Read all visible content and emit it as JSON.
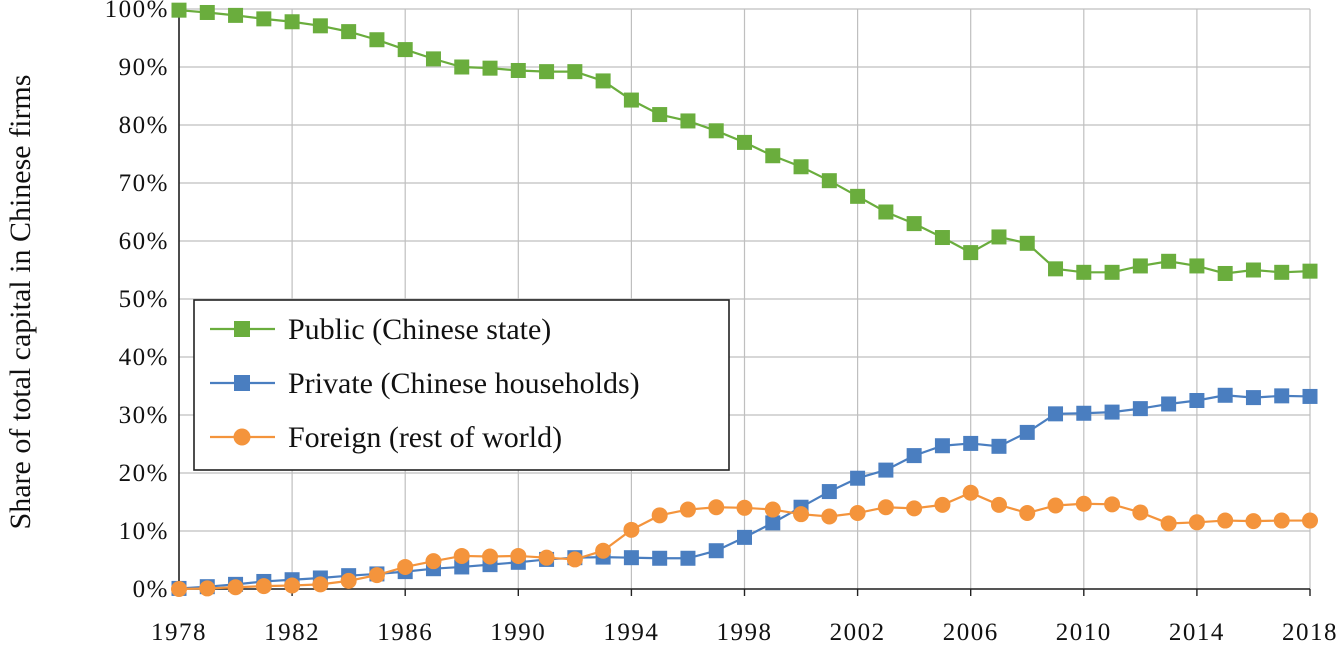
{
  "chart_data": {
    "type": "line",
    "title": "",
    "xlabel": "",
    "ylabel": "Share of total capital in Chinese firms",
    "xlim": [
      1978,
      2018
    ],
    "ylim": [
      0,
      100
    ],
    "x_ticks": [
      1978,
      1982,
      1986,
      1990,
      1994,
      1998,
      2002,
      2006,
      2010,
      2014,
      2018
    ],
    "y_ticks": [
      0,
      10,
      20,
      30,
      40,
      50,
      60,
      70,
      80,
      90,
      100
    ],
    "y_tick_labels": [
      "0%",
      "10%",
      "20%",
      "30%",
      "40%",
      "50%",
      "60%",
      "70%",
      "80%",
      "90%",
      "100%"
    ],
    "grid": true,
    "legend_position": "center-left",
    "x": [
      1978,
      1979,
      1980,
      1981,
      1982,
      1983,
      1984,
      1985,
      1986,
      1987,
      1988,
      1989,
      1990,
      1991,
      1992,
      1993,
      1994,
      1995,
      1996,
      1997,
      1998,
      1999,
      2000,
      2001,
      2002,
      2003,
      2004,
      2005,
      2006,
      2007,
      2008,
      2009,
      2010,
      2011,
      2012,
      2013,
      2014,
      2015,
      2016,
      2017,
      2018
    ],
    "series": [
      {
        "name": "Public (Chinese state)",
        "color": "#6aad3d",
        "marker": "square",
        "values": [
          99.8,
          99.4,
          98.9,
          98.3,
          97.8,
          97.1,
          96.1,
          94.7,
          93.0,
          91.4,
          90.0,
          89.8,
          89.4,
          89.2,
          89.2,
          87.6,
          84.3,
          81.8,
          80.7,
          79.0,
          77.0,
          74.7,
          72.8,
          70.4,
          67.7,
          65.0,
          63.0,
          60.6,
          58.0,
          60.7,
          59.6,
          55.2,
          54.6,
          54.6,
          55.7,
          56.5,
          55.7,
          54.4,
          55.0,
          54.6,
          54.8
        ]
      },
      {
        "name": "Private (Chinese households)",
        "color": "#4a7ec0",
        "marker": "square",
        "values": [
          0.1,
          0.4,
          0.8,
          1.3,
          1.6,
          1.9,
          2.3,
          2.6,
          3.0,
          3.5,
          3.8,
          4.2,
          4.6,
          5.1,
          5.4,
          5.5,
          5.4,
          5.3,
          5.3,
          6.6,
          8.9,
          11.4,
          14.1,
          16.8,
          19.1,
          20.5,
          23.0,
          24.7,
          25.1,
          24.6,
          27.0,
          30.2,
          30.3,
          30.5,
          31.1,
          31.9,
          32.5,
          33.4,
          33.0,
          33.3,
          33.2
        ]
      },
      {
        "name": "Foreign (rest of world)",
        "color": "#f4943c",
        "marker": "circle",
        "values": [
          0.0,
          0.1,
          0.3,
          0.5,
          0.6,
          0.8,
          1.4,
          2.4,
          3.8,
          4.8,
          5.7,
          5.6,
          5.7,
          5.4,
          5.1,
          6.6,
          10.2,
          12.7,
          13.7,
          14.1,
          14.0,
          13.7,
          12.9,
          12.5,
          13.1,
          14.1,
          13.9,
          14.5,
          16.6,
          14.5,
          13.1,
          14.4,
          14.7,
          14.6,
          13.2,
          11.3,
          11.5,
          11.8,
          11.7,
          11.8,
          11.8
        ]
      }
    ]
  }
}
